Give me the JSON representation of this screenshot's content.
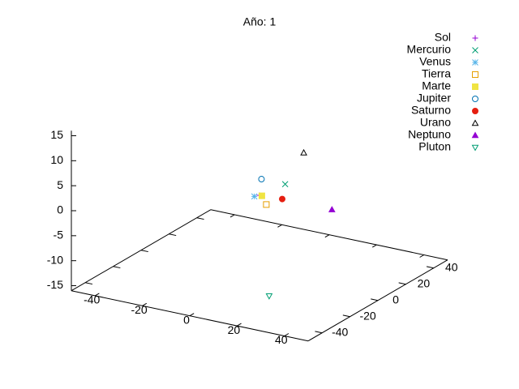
{
  "chart_data": {
    "type": "scatter3d",
    "title": "Año: 1",
    "xlim": [
      -50,
      50
    ],
    "ylim": [
      -50,
      50
    ],
    "zlim": [
      -16,
      16
    ],
    "xticks": [
      -40,
      -20,
      0,
      20,
      40
    ],
    "yticks": [
      -40,
      -20,
      0,
      20,
      40
    ],
    "zticks": [
      -15,
      -10,
      -5,
      0,
      5,
      10,
      15
    ],
    "legend": "top-right",
    "series": [
      {
        "name": "Sol",
        "color": "#9400d3",
        "marker": "plus",
        "x": [
          0
        ],
        "y": [
          0
        ],
        "z": [
          0
        ]
      },
      {
        "name": "Mercurio",
        "color": "#009e73",
        "marker": "cross",
        "x": [
          2
        ],
        "y": [
          15
        ],
        "z": [
          0
        ]
      },
      {
        "name": "Venus",
        "color": "#56b4e9",
        "marker": "asterisk",
        "x": [
          -1
        ],
        "y": [
          -2
        ],
        "z": [
          0
        ]
      },
      {
        "name": "Tierra",
        "color": "#e69f00",
        "marker": "square",
        "x": [
          7
        ],
        "y": [
          -7
        ],
        "z": [
          0
        ]
      },
      {
        "name": "Marte",
        "color": "#f0e442",
        "marker": "filled-square",
        "x": [
          1
        ],
        "y": [
          0
        ],
        "z": [
          0
        ]
      },
      {
        "name": "Jupiter",
        "color": "#0072b2",
        "marker": "circle",
        "x": [
          -8
        ],
        "y": [
          15
        ],
        "z": [
          0
        ]
      },
      {
        "name": "Saturno",
        "color": "#e51e10",
        "marker": "filled-circle",
        "x": [
          9
        ],
        "y": [
          1
        ],
        "z": [
          0
        ]
      },
      {
        "name": "Urano",
        "color": "#000000",
        "marker": "triangle",
        "x": [
          -9
        ],
        "y": [
          47
        ],
        "z": [
          0
        ]
      },
      {
        "name": "Neptuno",
        "color": "#9400d3",
        "marker": "filled-triangle",
        "x": [
          30
        ],
        "y": [
          1
        ],
        "z": [
          0
        ]
      },
      {
        "name": "Pluton",
        "color": "#009e73",
        "marker": "triangle-down",
        "x": [
          30
        ],
        "y": [
          -44
        ],
        "z": [
          -10
        ]
      }
    ]
  }
}
